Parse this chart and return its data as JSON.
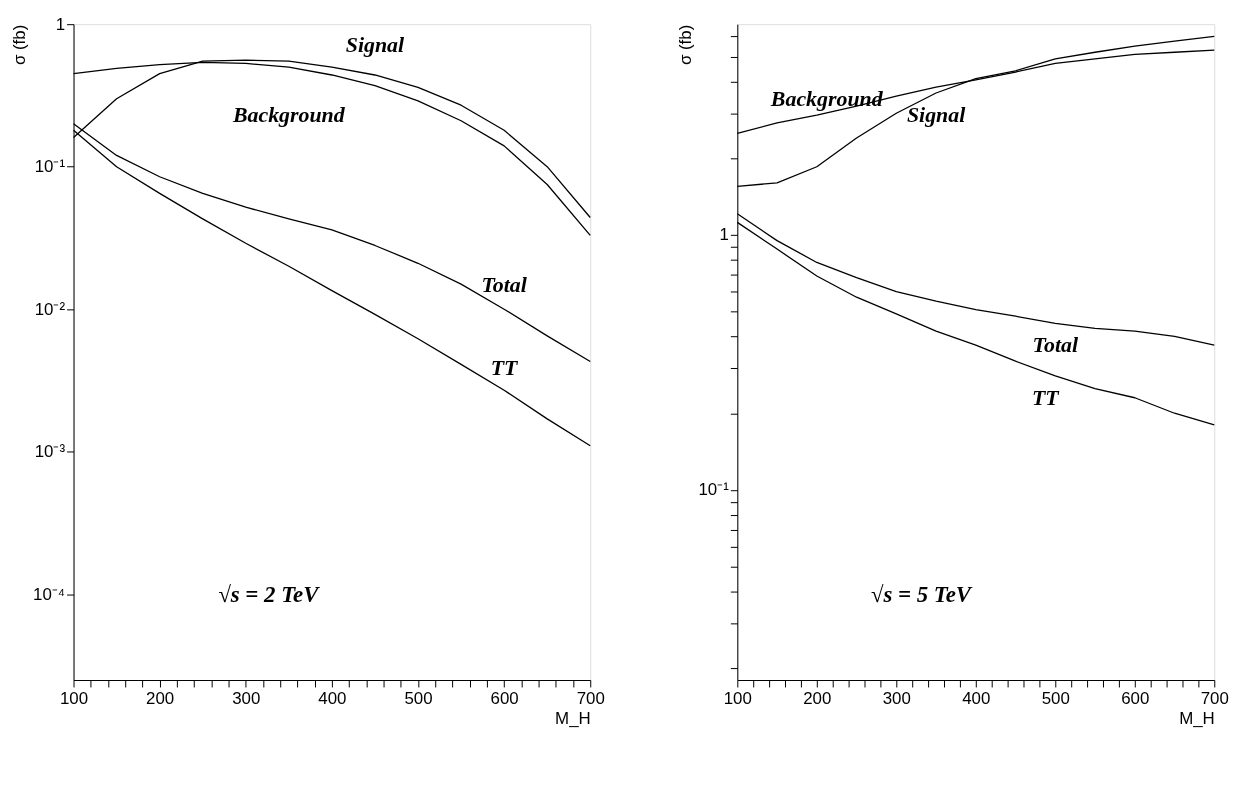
{
  "chart_data": [
    {
      "type": "line",
      "xlabel": "M_H",
      "ylabel": "σ (fb)",
      "log": true,
      "grid": false,
      "legend": false,
      "marker": "none",
      "line_style": "solid",
      "xlim": [
        100,
        700
      ],
      "xticks": [
        100,
        {
          "value": 120,
          "label": null
        },
        {
          "value": 140,
          "label": null
        },
        {
          "value": 160,
          "label": null
        },
        {
          "value": 180,
          "label": null
        },
        200,
        {
          "value": 220,
          "label": null
        },
        {
          "value": 240,
          "label": null
        },
        {
          "value": 260,
          "label": null
        },
        {
          "value": 280,
          "label": null
        },
        300,
        {
          "value": 320,
          "label": null
        },
        {
          "value": 340,
          "label": null
        },
        {
          "value": 360,
          "label": null
        },
        {
          "value": 380,
          "label": null
        },
        400,
        {
          "value": 420,
          "label": null
        },
        {
          "value": 440,
          "label": null
        },
        {
          "value": 460,
          "label": null
        },
        {
          "value": 480,
          "label": null
        },
        500,
        {
          "value": 520,
          "label": null
        },
        {
          "value": 540,
          "label": null
        },
        {
          "value": 560,
          "label": null
        },
        {
          "value": 580,
          "label": null
        },
        600,
        {
          "value": 620,
          "label": null
        },
        {
          "value": 640,
          "label": null
        },
        {
          "value": 660,
          "label": null
        },
        {
          "value": 680,
          "label": null
        },
        700
      ],
      "ylim": [
        2.5e-05,
        1
      ],
      "yticks": [
        {
          "value": 0.0001,
          "label": "10⁻⁴"
        },
        {
          "value": 0.001,
          "label": "10⁻³"
        },
        {
          "value": 0.01,
          "label": "10⁻²"
        },
        {
          "value": 0.1,
          "label": "10⁻¹"
        },
        1
      ],
      "x": [
        100,
        150,
        200,
        250,
        300,
        350,
        400,
        450,
        500,
        550,
        600,
        650,
        700
      ],
      "series": [
        {
          "name": "Background",
          "color": "#000000",
          "values": [
            0.45,
            0.49,
            0.52,
            0.54,
            0.53,
            0.5,
            0.44,
            0.37,
            0.29,
            0.21,
            0.14,
            0.075,
            0.033
          ]
        },
        {
          "name": "Signal",
          "color": "#000000",
          "values": [
            0.16,
            0.3,
            0.45,
            0.55,
            0.56,
            0.55,
            0.5,
            0.44,
            0.36,
            0.27,
            0.18,
            0.1,
            0.044
          ]
        },
        {
          "name": "Total",
          "color": "#000000",
          "values": [
            0.2,
            0.12,
            0.085,
            0.065,
            0.052,
            0.043,
            0.036,
            0.028,
            0.021,
            0.015,
            0.01,
            0.0065,
            0.0043
          ]
        },
        {
          "name": "TT",
          "color": "#000000",
          "values": [
            0.18,
            0.1,
            0.065,
            0.043,
            0.029,
            0.02,
            0.0135,
            0.0092,
            0.0062,
            0.0041,
            0.0027,
            0.0017,
            0.0011
          ]
        }
      ],
      "annotations": [
        "√s = 2 TeV"
      ]
    },
    {
      "type": "line",
      "xlabel": "M_H",
      "ylabel": "σ (fb)",
      "log": true,
      "grid": false,
      "legend": false,
      "marker": "none",
      "line_style": "solid",
      "xlim": [
        100,
        700
      ],
      "xticks": [
        100,
        {
          "value": 120,
          "label": null
        },
        {
          "value": 140,
          "label": null
        },
        {
          "value": 160,
          "label": null
        },
        {
          "value": 180,
          "label": null
        },
        200,
        {
          "value": 220,
          "label": null
        },
        {
          "value": 240,
          "label": null
        },
        {
          "value": 260,
          "label": null
        },
        {
          "value": 280,
          "label": null
        },
        300,
        {
          "value": 320,
          "label": null
        },
        {
          "value": 340,
          "label": null
        },
        {
          "value": 360,
          "label": null
        },
        {
          "value": 380,
          "label": null
        },
        400,
        {
          "value": 420,
          "label": null
        },
        {
          "value": 440,
          "label": null
        },
        {
          "value": 460,
          "label": null
        },
        {
          "value": 480,
          "label": null
        },
        500,
        {
          "value": 520,
          "label": null
        },
        {
          "value": 540,
          "label": null
        },
        {
          "value": 560,
          "label": null
        },
        {
          "value": 580,
          "label": null
        },
        600,
        {
          "value": 620,
          "label": null
        },
        {
          "value": 640,
          "label": null
        },
        {
          "value": 660,
          "label": null
        },
        {
          "value": 680,
          "label": null
        },
        700
      ],
      "ylim": [
        0.018,
        6.7
      ],
      "yticks": [
        {
          "value": 0.02,
          "label": null
        },
        {
          "value": 0.03,
          "label": null
        },
        {
          "value": 0.04,
          "label": null
        },
        {
          "value": 0.05,
          "label": null
        },
        {
          "value": 0.06,
          "label": null
        },
        {
          "value": 0.07,
          "label": null
        },
        {
          "value": 0.08,
          "label": null
        },
        {
          "value": 0.09,
          "label": null
        },
        {
          "value": 0.1,
          "label": "10⁻¹"
        },
        {
          "value": 0.2,
          "label": null
        },
        {
          "value": 0.3,
          "label": null
        },
        {
          "value": 0.4,
          "label": null
        },
        {
          "value": 0.5,
          "label": null
        },
        {
          "value": 0.6,
          "label": null
        },
        {
          "value": 0.7,
          "label": null
        },
        {
          "value": 0.8,
          "label": null
        },
        {
          "value": 0.9,
          "label": null
        },
        1,
        {
          "value": 2,
          "label": null
        },
        {
          "value": 3,
          "label": null
        },
        {
          "value": 4,
          "label": null
        },
        {
          "value": 5,
          "label": null
        },
        {
          "value": 6,
          "label": null
        }
      ],
      "x": [
        100,
        150,
        200,
        250,
        300,
        350,
        400,
        450,
        500,
        550,
        600,
        650,
        700
      ],
      "series": [
        {
          "name": "Background",
          "color": "#000000",
          "values": [
            2.5,
            2.75,
            2.95,
            3.2,
            3.5,
            3.8,
            4.05,
            4.35,
            4.7,
            4.9,
            5.1,
            5.2,
            5.3
          ]
        },
        {
          "name": "Signal",
          "color": "#000000",
          "values": [
            1.55,
            1.6,
            1.85,
            2.4,
            3.0,
            3.6,
            4.1,
            4.4,
            4.9,
            5.2,
            5.5,
            5.75,
            6.0
          ]
        },
        {
          "name": "Total",
          "color": "#000000",
          "values": [
            1.21,
            0.95,
            0.78,
            0.68,
            0.6,
            0.55,
            0.51,
            0.48,
            0.45,
            0.43,
            0.42,
            0.4,
            0.37
          ]
        },
        {
          "name": "TT",
          "color": "#000000",
          "values": [
            1.12,
            0.88,
            0.69,
            0.57,
            0.49,
            0.42,
            0.37,
            0.32,
            0.28,
            0.25,
            0.23,
            0.2,
            0.18
          ]
        }
      ],
      "annotations": [
        "√s = 5 TeV"
      ]
    }
  ]
}
